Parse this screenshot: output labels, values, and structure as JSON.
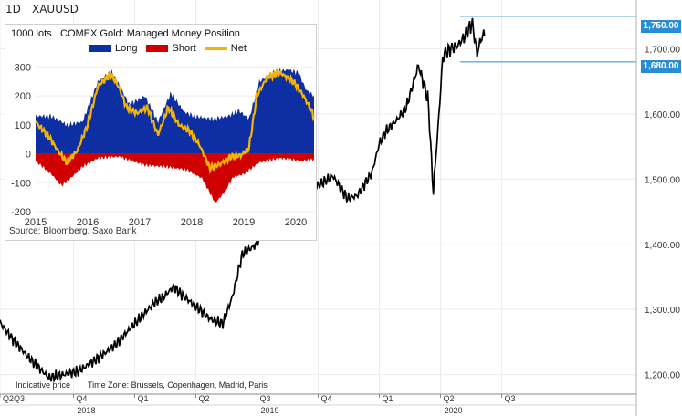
{
  "header": {
    "timeframe": "1D",
    "symbol": "XAUUSD"
  },
  "footer": {
    "indicative": "Indicative price",
    "timezone": "Time Zone: Brussels, Copenhagen, Madrid, Paris"
  },
  "badges": {
    "upper": "1,750.00",
    "lower": "1,680.00"
  },
  "inset": {
    "unit_label": "1000 lots",
    "title": "COMEX Gold: Managed Money Position",
    "legend": {
      "long": "Long",
      "short": "Short",
      "net": "Net"
    },
    "source": "Source: Bloomberg, Saxo Bank"
  },
  "chart_data": [
    {
      "type": "line",
      "ylim": [
        1170,
        1775
      ],
      "yticks": [
        "1,200.00",
        "1,300.00",
        "1,400.00",
        "1,500.00",
        "1,600.00",
        "1,700.00"
      ],
      "ytick_values": [
        1200,
        1300,
        1400,
        1500,
        1600,
        1700
      ],
      "quarter_ticks": [
        "Q2Q3",
        "Q4",
        "Q1",
        "Q2",
        "Q3",
        "Q4",
        "Q1",
        "Q2",
        "Q3"
      ],
      "quarter_t": [
        0.0,
        0.3,
        0.55,
        0.8,
        1.05,
        1.3,
        1.55,
        1.8,
        2.05
      ],
      "year_labels": [
        "2018",
        "2019",
        "2020"
      ],
      "year_t": [
        0.3,
        1.05,
        1.8
      ],
      "levels": [
        1750,
        1680
      ],
      "price_anchors": [
        [
          0.0,
          1280
        ],
        [
          0.05,
          1255
        ],
        [
          0.12,
          1225
        ],
        [
          0.2,
          1195
        ],
        [
          0.26,
          1200
        ],
        [
          0.32,
          1205
        ],
        [
          0.4,
          1225
        ],
        [
          0.47,
          1245
        ],
        [
          0.53,
          1270
        ],
        [
          0.58,
          1290
        ],
        [
          0.63,
          1310
        ],
        [
          0.67,
          1320
        ],
        [
          0.71,
          1335
        ],
        [
          0.75,
          1320
        ],
        [
          0.8,
          1305
        ],
        [
          0.86,
          1285
        ],
        [
          0.91,
          1278
        ],
        [
          0.95,
          1320
        ],
        [
          0.99,
          1385
        ],
        [
          1.05,
          1400
        ],
        [
          1.09,
          1440
        ],
        [
          1.12,
          1500
        ],
        [
          1.17,
          1515
        ],
        [
          1.21,
          1525
        ],
        [
          1.25,
          1505
        ],
        [
          1.3,
          1490
        ],
        [
          1.36,
          1505
        ],
        [
          1.42,
          1470
        ],
        [
          1.46,
          1475
        ],
        [
          1.52,
          1510
        ],
        [
          1.55,
          1555
        ],
        [
          1.58,
          1575
        ],
        [
          1.62,
          1590
        ],
        [
          1.66,
          1610
        ],
        [
          1.71,
          1675
        ],
        [
          1.75,
          1620
        ],
        [
          1.77,
          1480
        ],
        [
          1.79,
          1580
        ],
        [
          1.81,
          1690
        ],
        [
          1.84,
          1700
        ],
        [
          1.87,
          1705
        ],
        [
          1.9,
          1720
        ],
        [
          1.93,
          1740
        ],
        [
          1.95,
          1690
        ],
        [
          1.96,
          1710
        ],
        [
          1.98,
          1725
        ]
      ]
    },
    {
      "type": "area",
      "ylim": [
        -200,
        320
      ],
      "yticks": [
        300,
        200,
        100,
        0,
        -100,
        -200
      ],
      "xticks": [
        "2015",
        "2016",
        "2017",
        "2018",
        "2019",
        "2020"
      ],
      "xtick_t": [
        0,
        1,
        2,
        3,
        4,
        5
      ],
      "xlim": [
        0,
        5.35
      ],
      "colors": {
        "long": "#0d2fa3",
        "short": "#d10000",
        "net": "#f5b400"
      },
      "series": [
        {
          "name": "Long",
          "anchors": [
            [
              0.0,
              130
            ],
            [
              0.3,
              130
            ],
            [
              0.6,
              100
            ],
            [
              0.9,
              110
            ],
            [
              1.2,
              250
            ],
            [
              1.45,
              285
            ],
            [
              1.6,
              240
            ],
            [
              1.8,
              170
            ],
            [
              2.1,
              200
            ],
            [
              2.35,
              110
            ],
            [
              2.6,
              210
            ],
            [
              2.85,
              145
            ],
            [
              3.05,
              130
            ],
            [
              3.4,
              120
            ],
            [
              3.7,
              130
            ],
            [
              3.9,
              150
            ],
            [
              4.1,
              120
            ],
            [
              4.3,
              250
            ],
            [
              4.6,
              285
            ],
            [
              4.85,
              290
            ],
            [
              5.05,
              280
            ],
            [
              5.2,
              220
            ],
            [
              5.35,
              200
            ]
          ]
        },
        {
          "name": "Short",
          "anchors": [
            [
              0.0,
              -25
            ],
            [
              0.3,
              -70
            ],
            [
              0.5,
              -110
            ],
            [
              0.7,
              -80
            ],
            [
              0.9,
              -45
            ],
            [
              1.2,
              -15
            ],
            [
              1.6,
              -10
            ],
            [
              2.1,
              -40
            ],
            [
              2.5,
              -45
            ],
            [
              2.9,
              -55
            ],
            [
              3.2,
              -85
            ],
            [
              3.45,
              -170
            ],
            [
              3.6,
              -140
            ],
            [
              3.8,
              -80
            ],
            [
              4.0,
              -70
            ],
            [
              4.3,
              -30
            ],
            [
              4.7,
              -15
            ],
            [
              5.1,
              -25
            ],
            [
              5.35,
              -20
            ]
          ]
        },
        {
          "name": "Net",
          "anchors": [
            [
              0.0,
              110
            ],
            [
              0.25,
              60
            ],
            [
              0.45,
              5
            ],
            [
              0.6,
              -30
            ],
            [
              0.8,
              10
            ],
            [
              1.0,
              100
            ],
            [
              1.2,
              235
            ],
            [
              1.45,
              275
            ],
            [
              1.6,
              230
            ],
            [
              1.75,
              160
            ],
            [
              1.95,
              140
            ],
            [
              2.15,
              160
            ],
            [
              2.35,
              65
            ],
            [
              2.55,
              160
            ],
            [
              2.75,
              100
            ],
            [
              2.95,
              80
            ],
            [
              3.15,
              30
            ],
            [
              3.35,
              -50
            ],
            [
              3.55,
              -35
            ],
            [
              3.75,
              -10
            ],
            [
              3.95,
              -5
            ],
            [
              4.1,
              20
            ],
            [
              4.25,
              200
            ],
            [
              4.45,
              265
            ],
            [
              4.7,
              280
            ],
            [
              4.95,
              250
            ],
            [
              5.15,
              200
            ],
            [
              5.35,
              130
            ]
          ]
        }
      ]
    }
  ]
}
